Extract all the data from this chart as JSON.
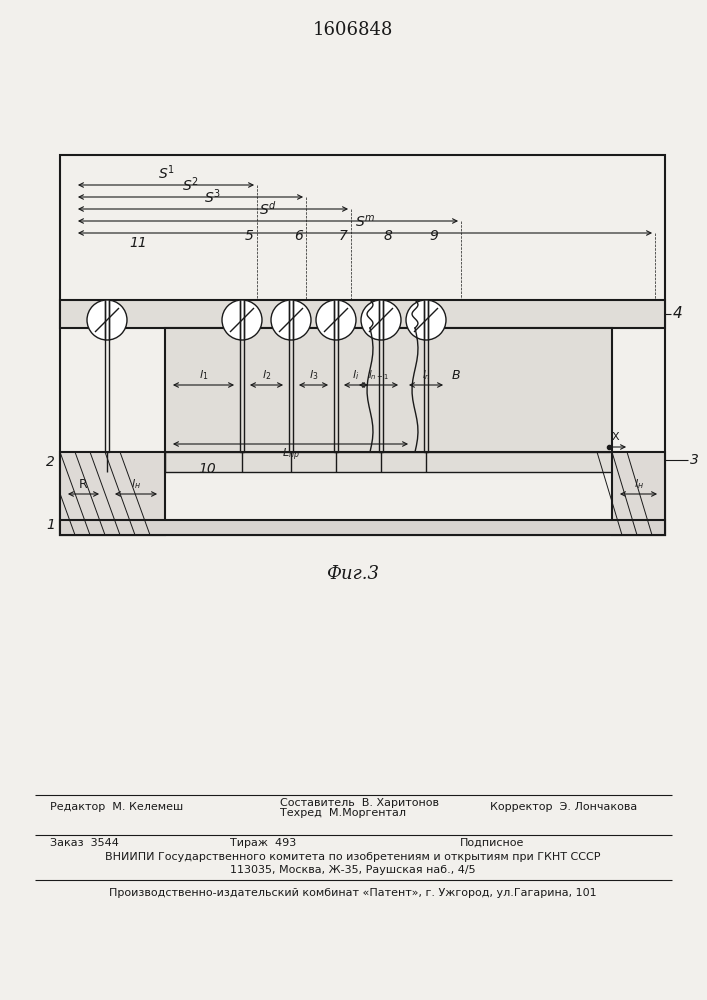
{
  "title": "1606848",
  "fig_label": "Фиг.3",
  "bg_color": "#f2f0ec",
  "line_color": "#1a1a1a",
  "editor_left": "Редактор  М. Келемеш",
  "compose_top": "Составитель  В. Харитонов",
  "compose_bot": "Техред  М.Моргентал",
  "correct_right": "Корректор  Э. Лончакова",
  "order_text": "Заказ  3544",
  "tirazh_text": "Тираж  493",
  "podpis_text": "Подписное",
  "vnipi_line1": "ВНИИПИ Государственного комитета по изобретениям и открытиям при ГКНТ СССР",
  "vnipi_line2": "113035, Москва, Ж-35, Раушская наб., 4/5",
  "patent_line": "Производственно-издательский комбинат «Патент», г. Ужгород, ул.Гагарина, 101"
}
